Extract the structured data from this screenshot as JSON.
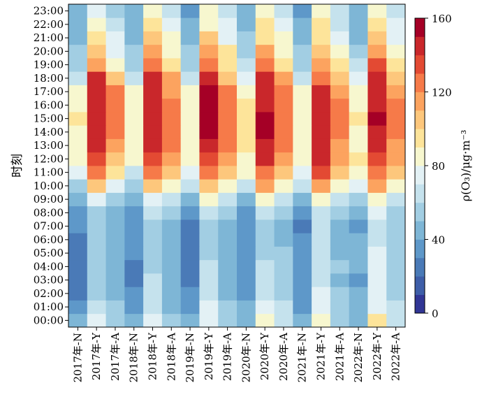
{
  "chart_data": {
    "type": "heatmap",
    "title": "",
    "xlabel": "",
    "ylabel": "时刻",
    "colorbar_label": "ρ(O₃)/μg·m⁻³",
    "colorbar_ticks": [
      0,
      40,
      80,
      120,
      160
    ],
    "colorbar_range": [
      0,
      160
    ],
    "colormap": "RdYlBu_r (16 discrete levels)",
    "x_categories": [
      "2017年-N",
      "2017年-Y",
      "2017年-A",
      "2018年-N",
      "2018年-Y",
      "2018年-A",
      "2019年-N",
      "2019年-Y",
      "2019年-A",
      "2020年-N",
      "2020年-Y",
      "2020年-A",
      "2021年-N",
      "2021年-Y",
      "2021年-A",
      "2022年-N",
      "2022年-Y",
      "2022年-A"
    ],
    "y_categories": [
      "00:00",
      "01:00",
      "02:00",
      "03:00",
      "04:00",
      "05:00",
      "06:00",
      "07:00",
      "08:00",
      "09:00",
      "10:00",
      "11:00",
      "12:00",
      "13:00",
      "14:00",
      "15:00",
      "16:00",
      "17:00",
      "18:00",
      "19:00",
      "20:00",
      "21:00",
      "22:00",
      "23:00"
    ],
    "values": [
      [
        45,
        75,
        55,
        40,
        72,
        50,
        40,
        75,
        55,
        45,
        85,
        65,
        40,
        80,
        55,
        45,
        90,
        65
      ],
      [
        30,
        65,
        50,
        35,
        65,
        48,
        35,
        75,
        50,
        40,
        75,
        60,
        38,
        75,
        55,
        45,
        72,
        60
      ],
      [
        28,
        58,
        45,
        30,
        62,
        45,
        30,
        65,
        48,
        35,
        65,
        55,
        35,
        70,
        50,
        40,
        75,
        58
      ],
      [
        25,
        55,
        45,
        28,
        60,
        43,
        28,
        62,
        45,
        32,
        65,
        52,
        32,
        68,
        48,
        38,
        70,
        55
      ],
      [
        27,
        52,
        42,
        28,
        58,
        42,
        27,
        60,
        45,
        32,
        62,
        52,
        35,
        65,
        50,
        40,
        70,
        55
      ],
      [
        27,
        52,
        42,
        30,
        52,
        42,
        28,
        55,
        42,
        30,
        58,
        50,
        32,
        62,
        48,
        40,
        70,
        55
      ],
      [
        28,
        50,
        42,
        30,
        50,
        40,
        28,
        52,
        40,
        30,
        55,
        45,
        30,
        60,
        45,
        40,
        65,
        55
      ],
      [
        30,
        50,
        40,
        30,
        50,
        42,
        28,
        52,
        42,
        30,
        55,
        45,
        28,
        60,
        45,
        35,
        62,
        52
      ],
      [
        30,
        55,
        42,
        30,
        62,
        50,
        30,
        62,
        50,
        35,
        62,
        52,
        35,
        65,
        50,
        45,
        70,
        55
      ],
      [
        42,
        75,
        55,
        40,
        78,
        60,
        42,
        80,
        60,
        48,
        82,
        65,
        45,
        82,
        65,
        55,
        88,
        65
      ],
      [
        58,
        100,
        78,
        55,
        105,
        85,
        60,
        102,
        82,
        65,
        110,
        88,
        65,
        110,
        88,
        70,
        115,
        85
      ],
      [
        75,
        120,
        95,
        68,
        120,
        105,
        70,
        125,
        105,
        80,
        125,
        105,
        75,
        130,
        108,
        85,
        125,
        105
      ],
      [
        85,
        135,
        105,
        80,
        135,
        115,
        80,
        135,
        110,
        88,
        140,
        118,
        82,
        140,
        118,
        90,
        138,
        112
      ],
      [
        85,
        140,
        115,
        82,
        145,
        120,
        85,
        145,
        120,
        90,
        148,
        125,
        85,
        142,
        112,
        88,
        142,
        118
      ],
      [
        88,
        145,
        120,
        82,
        148,
        125,
        88,
        150,
        125,
        92,
        150,
        128,
        85,
        142,
        120,
        88,
        145,
        120
      ],
      [
        90,
        145,
        125,
        85,
        148,
        128,
        88,
        152,
        125,
        92,
        150,
        128,
        85,
        142,
        125,
        90,
        150,
        122
      ],
      [
        88,
        145,
        125,
        82,
        148,
        125,
        88,
        152,
        125,
        92,
        148,
        128,
        85,
        142,
        120,
        88,
        148,
        120
      ],
      [
        82,
        142,
        120,
        80,
        148,
        118,
        82,
        150,
        120,
        88,
        145,
        120,
        80,
        140,
        115,
        85,
        145,
        118
      ],
      [
        65,
        140,
        105,
        65,
        140,
        110,
        68,
        140,
        108,
        75,
        140,
        110,
        68,
        128,
        105,
        72,
        142,
        105
      ],
      [
        55,
        115,
        85,
        58,
        128,
        95,
        55,
        128,
        98,
        62,
        125,
        98,
        55,
        118,
        92,
        60,
        130,
        92
      ],
      [
        50,
        102,
        78,
        52,
        118,
        88,
        50,
        115,
        90,
        55,
        110,
        88,
        50,
        105,
        85,
        52,
        112,
        85
      ],
      [
        48,
        92,
        72,
        48,
        102,
        80,
        45,
        100,
        78,
        50,
        98,
        80,
        45,
        95,
        75,
        48,
        100,
        75
      ],
      [
        45,
        82,
        65,
        45,
        92,
        70,
        42,
        88,
        70,
        48,
        92,
        72,
        42,
        90,
        68,
        45,
        92,
        70
      ],
      [
        40,
        75,
        58,
        40,
        85,
        62,
        38,
        80,
        62,
        42,
        85,
        65,
        38,
        82,
        62,
        45,
        85,
        62
      ]
    ]
  }
}
